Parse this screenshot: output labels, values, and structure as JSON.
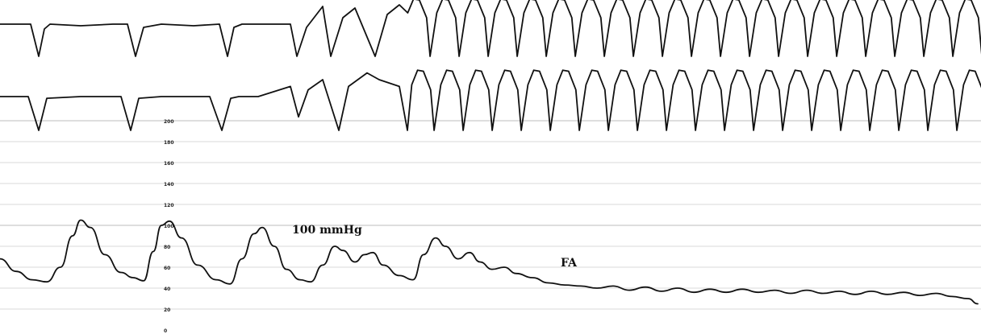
{
  "chart_data": {
    "type": "line",
    "title": "",
    "annotations": {
      "pressure_label": "100 mmHg",
      "rhythm_label": "FA"
    },
    "pressure_axis": {
      "ticks": [
        0,
        20,
        40,
        60,
        80,
        100,
        120,
        140,
        160,
        180,
        200
      ],
      "ylim": [
        0,
        200
      ],
      "grid": true
    },
    "series": [
      {
        "name": "",
        "kind": "ecg-lead-1",
        "t": [
          0,
          30,
          38,
          48,
          55,
          62,
          100,
          140,
          158,
          168,
          178,
          200,
          240,
          272,
          282,
          290,
          300,
          320,
          360,
          368,
          380,
          400,
          410,
          425,
          440,
          465,
          480,
          495,
          505,
          520,
          540,
          560,
          590,
          620,
          650,
          680,
          710,
          740,
          775,
          805,
          835,
          865,
          900,
          930,
          960,
          990,
          1025,
          1055,
          1085,
          1115,
          1145,
          1175,
          1205,
          1212
        ],
        "v": [
          0,
          0,
          0,
          1,
          0.15,
          0,
          0.05,
          0,
          0,
          1,
          0.1,
          0,
          0.05,
          0,
          1,
          0.1,
          0,
          0,
          0,
          1,
          0.1,
          -0.55,
          1,
          -0.2,
          -0.5,
          1,
          -0.3,
          -0.6,
          1,
          -0.2,
          -0.45,
          -0.7,
          -0.72,
          -0.75,
          -0.78,
          -0.78,
          -0.78,
          -0.78,
          -0.78,
          -0.78,
          -0.78,
          -0.78,
          -0.78,
          -0.78,
          -0.78,
          -0.78,
          -0.78,
          -0.78,
          -0.78,
          -0.78,
          -0.78,
          -0.78,
          -0.7,
          -0.5
        ]
      },
      {
        "name": "",
        "kind": "ecg-lead-2",
        "t": [
          0,
          35,
          48,
          58,
          100,
          150,
          162,
          172,
          200,
          260,
          275,
          286,
          296,
          320,
          360,
          370,
          382,
          400,
          420,
          432,
          455,
          470,
          495,
          505,
          530,
          560,
          590,
          620,
          650,
          680,
          710,
          740,
          775,
          805,
          835,
          865,
          900,
          930,
          960,
          990,
          1025,
          1055,
          1085,
          1115,
          1145,
          1175,
          1205,
          1212
        ],
        "v": [
          0,
          0,
          1,
          0.05,
          0,
          0,
          1,
          0.05,
          0,
          0,
          1,
          0.05,
          0,
          0,
          -0.3,
          0.6,
          -0.2,
          -0.5,
          1,
          -0.3,
          -0.7,
          -0.5,
          -0.3,
          1,
          -0.25,
          -0.65,
          -0.65,
          -0.68,
          -0.7,
          -0.72,
          -0.72,
          -0.72,
          -0.72,
          -0.72,
          -0.72,
          -0.72,
          -0.72,
          -0.72,
          -0.72,
          -0.72,
          -0.72,
          -0.72,
          -0.72,
          -0.72,
          -0.72,
          -0.72,
          -0.65,
          -0.5
        ]
      },
      {
        "name": "",
        "kind": "arterial-pressure",
        "t_mmHg": [
          [
            0,
            68
          ],
          [
            20,
            56
          ],
          [
            40,
            48
          ],
          [
            58,
            46
          ],
          [
            75,
            60
          ],
          [
            90,
            90
          ],
          [
            100,
            105
          ],
          [
            112,
            98
          ],
          [
            130,
            72
          ],
          [
            150,
            55
          ],
          [
            165,
            50
          ],
          [
            178,
            47
          ],
          [
            190,
            75
          ],
          [
            200,
            100
          ],
          [
            210,
            104
          ],
          [
            225,
            88
          ],
          [
            245,
            62
          ],
          [
            268,
            48
          ],
          [
            285,
            44
          ],
          [
            300,
            68
          ],
          [
            315,
            92
          ],
          [
            325,
            98
          ],
          [
            340,
            80
          ],
          [
            355,
            58
          ],
          [
            372,
            48
          ],
          [
            385,
            46
          ],
          [
            400,
            62
          ],
          [
            415,
            80
          ],
          [
            425,
            76
          ],
          [
            440,
            65
          ],
          [
            452,
            72
          ],
          [
            462,
            74
          ],
          [
            475,
            62
          ],
          [
            495,
            52
          ],
          [
            512,
            48
          ],
          [
            525,
            72
          ],
          [
            540,
            88
          ],
          [
            552,
            80
          ],
          [
            568,
            68
          ],
          [
            582,
            74
          ],
          [
            595,
            65
          ],
          [
            610,
            58
          ],
          [
            625,
            60
          ],
          [
            640,
            54
          ],
          [
            660,
            50
          ],
          [
            680,
            45
          ],
          [
            700,
            43
          ],
          [
            720,
            42
          ],
          [
            740,
            40
          ],
          [
            760,
            42
          ],
          [
            780,
            38
          ],
          [
            800,
            41
          ],
          [
            820,
            37
          ],
          [
            840,
            40
          ],
          [
            860,
            36
          ],
          [
            880,
            39
          ],
          [
            900,
            36
          ],
          [
            920,
            39
          ],
          [
            940,
            36
          ],
          [
            960,
            38
          ],
          [
            980,
            35
          ],
          [
            1000,
            38
          ],
          [
            1020,
            35
          ],
          [
            1040,
            37
          ],
          [
            1060,
            34
          ],
          [
            1080,
            37
          ],
          [
            1100,
            34
          ],
          [
            1120,
            36
          ],
          [
            1140,
            33
          ],
          [
            1160,
            35
          ],
          [
            1180,
            32
          ],
          [
            1200,
            30
          ],
          [
            1212,
            25
          ]
        ]
      }
    ]
  }
}
